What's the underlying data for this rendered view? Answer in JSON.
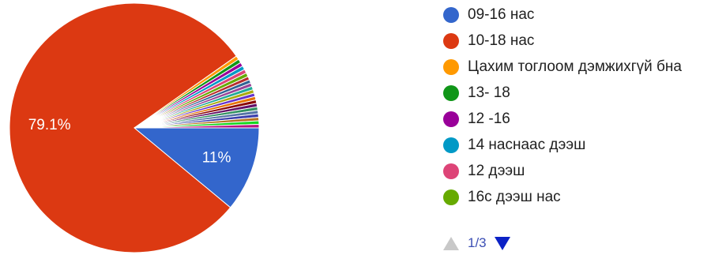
{
  "chart_data": {
    "type": "pie",
    "slices": [
      {
        "label": "09-16 нас",
        "value": 11.0,
        "color": "#3366cc",
        "display": "11%"
      },
      {
        "label": "10-18 нас",
        "value": 79.1,
        "color": "#dc3912",
        "display": "79.1%"
      },
      {
        "label": "Цахим тоглоом дэмжихгүй бна",
        "value": 0.5,
        "color": "#ff9900",
        "display": ""
      },
      {
        "label": "13- 18",
        "value": 0.5,
        "color": "#109618",
        "display": ""
      },
      {
        "label": "12 -16",
        "value": 0.5,
        "color": "#990099",
        "display": ""
      },
      {
        "label": "14 наснаас дээш",
        "value": 0.5,
        "color": "#0099c6",
        "display": ""
      },
      {
        "label": "12 дээш",
        "value": 0.5,
        "color": "#dd4477",
        "display": ""
      },
      {
        "label": "16с дээш нас",
        "value": 0.5,
        "color": "#66aa00",
        "display": ""
      },
      {
        "value": 0.45,
        "color": "#b82e2e"
      },
      {
        "value": 0.45,
        "color": "#316395"
      },
      {
        "value": 0.45,
        "color": "#994499"
      },
      {
        "value": 0.45,
        "color": "#22aa99"
      },
      {
        "value": 0.45,
        "color": "#aaaa11"
      },
      {
        "value": 0.45,
        "color": "#6633cc"
      },
      {
        "value": 0.45,
        "color": "#e67300"
      },
      {
        "value": 0.45,
        "color": "#8b0707"
      },
      {
        "value": 0.45,
        "color": "#651067"
      },
      {
        "value": 0.45,
        "color": "#329262"
      },
      {
        "value": 0.45,
        "color": "#5574a6"
      },
      {
        "value": 0.45,
        "color": "#3b3eac"
      },
      {
        "value": 0.45,
        "color": "#b77322"
      },
      {
        "value": 0.45,
        "color": "#16d620"
      },
      {
        "value": 0.45,
        "color": "#b91383"
      }
    ],
    "legend_position": "right"
  },
  "legend": {
    "items": [
      {
        "label": "09-16 нас",
        "color": "#3366cc"
      },
      {
        "label": "10-18 нас",
        "color": "#dc3912"
      },
      {
        "label": "Цахим тоглоом дэмжихгүй бна",
        "color": "#ff9900"
      },
      {
        "label": "13- 18",
        "color": "#109618"
      },
      {
        "label": "12 -16",
        "color": "#990099"
      },
      {
        "label": "14 наснаас дээш",
        "color": "#0099c6"
      },
      {
        "label": "12 дээш",
        "color": "#dd4477"
      },
      {
        "label": "16с дээш нас",
        "color": "#66aa00"
      }
    ],
    "pager_text": "1/3"
  }
}
